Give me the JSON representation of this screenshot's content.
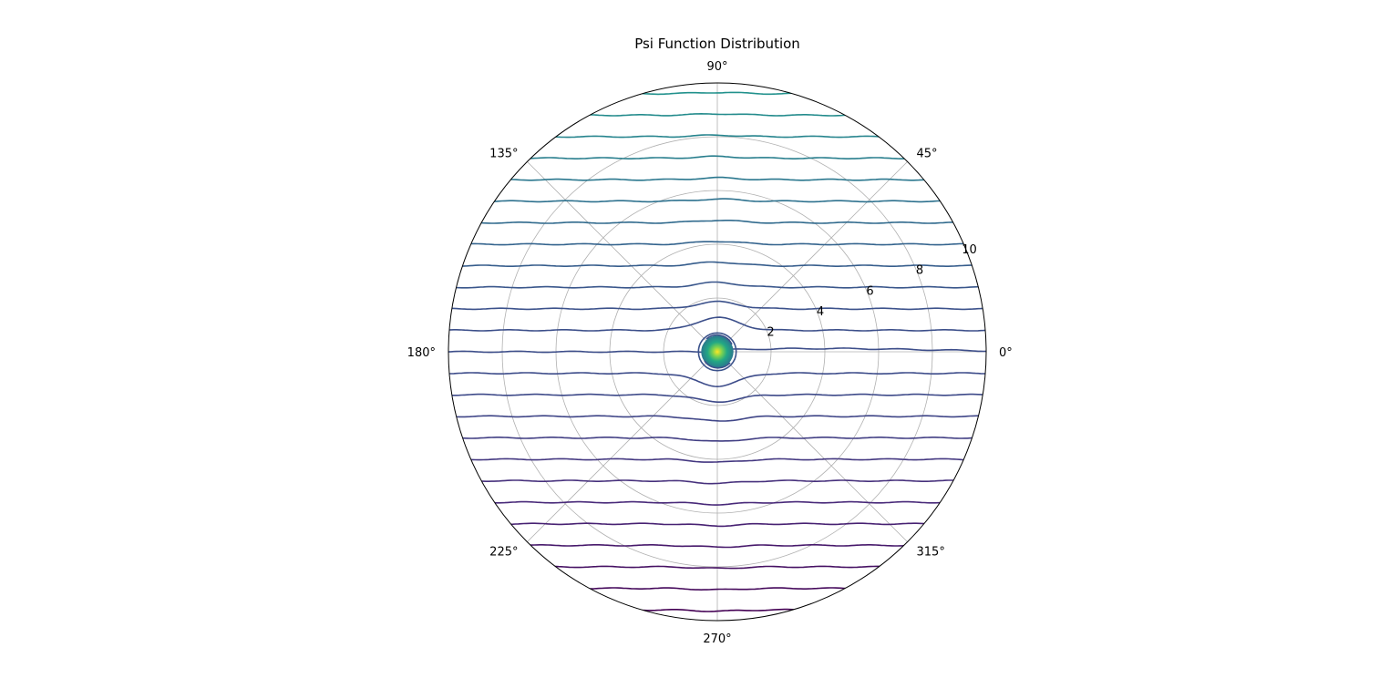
{
  "chart_data": {
    "type": "contour",
    "projection": "polar",
    "title": "Psi Function Distribution",
    "r_max": 10,
    "r_ticks": [
      "2",
      "4",
      "6",
      "8",
      "10"
    ],
    "r_tick_values": [
      2,
      4,
      6,
      8,
      10
    ],
    "r_label_angle_deg": 22.5,
    "theta_ticks": [
      "0°",
      "45°",
      "90°",
      "135°",
      "180°",
      "225°",
      "270°",
      "315°"
    ],
    "theta_tick_values_deg": [
      0,
      45,
      90,
      135,
      180,
      225,
      270,
      315
    ],
    "grid": true,
    "colormap": "viridis",
    "contour_levels_y": [
      -9.6,
      -8.8,
      -8.0,
      -7.2,
      -6.4,
      -5.6,
      -4.8,
      -4.0,
      -3.2,
      -2.4,
      -1.6,
      -0.8,
      0,
      0.8,
      1.6,
      2.4,
      3.2,
      4.0,
      4.8,
      5.6,
      6.4,
      7.2,
      8.0,
      8.8,
      9.6
    ],
    "singularity": {
      "x": 0,
      "y": 0,
      "radius": 0.6
    },
    "colors": {
      "low": "#440154",
      "mid": "#3b528b",
      "high": "#21918c",
      "peak": "#fde725",
      "grid": "#b0b0b0",
      "frame": "#000000"
    }
  }
}
